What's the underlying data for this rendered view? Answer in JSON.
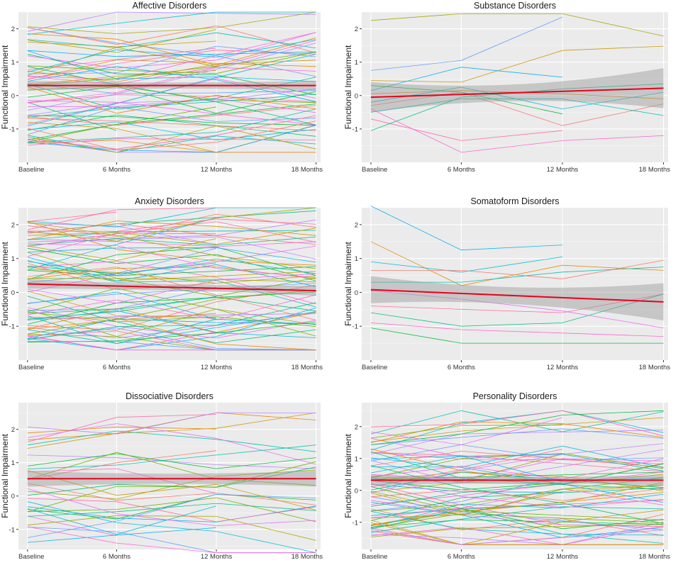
{
  "figure": {
    "palette": [
      "#F8766D",
      "#E58700",
      "#C99800",
      "#A3A500",
      "#6BB100",
      "#00BA38",
      "#00BF7D",
      "#00C0AF",
      "#00BCD8",
      "#00B0F6",
      "#619CFF",
      "#B983FF",
      "#E76BF3",
      "#FD61D1",
      "#FF67A4"
    ],
    "colors": {
      "panel_bg": "#EBEBEB",
      "grid": "#FFFFFF",
      "trend": "#E8001B",
      "ribbon": "#999999"
    }
  },
  "chart_data": [
    {
      "type": "line",
      "title": "Affective Disorders",
      "xlabel": "",
      "ylabel": "Functional Impairment",
      "categories": [
        "Baseline",
        "6 Months",
        "12 Months",
        "18 Months"
      ],
      "yticks": [
        -1,
        0,
        1,
        2
      ],
      "ylim": [
        -2.0,
        2.5
      ],
      "n_lines": 60,
      "seed": 11,
      "trend": {
        "start": 0.3,
        "end": 0.3
      },
      "ribbon": {
        "start": 0.14,
        "mid": 0.09,
        "end": 0.14
      }
    },
    {
      "type": "line",
      "title": "Substance Disorders",
      "xlabel": "",
      "ylabel": "Functional Impairment",
      "categories": [
        "Baseline",
        "6 Months",
        "12 Months",
        "18 Months"
      ],
      "yticks": [
        -1,
        0,
        1,
        2
      ],
      "ylim": [
        -2.0,
        2.5
      ],
      "series": [
        {
          "name": "s1",
          "values": [
            2.25,
            2.45,
            2.45,
            1.78
          ]
        },
        {
          "name": "s2",
          "values": [
            0.75,
            1.05,
            2.35,
            null
          ]
        },
        {
          "name": "s3",
          "values": [
            0.45,
            0.4,
            1.35,
            1.48
          ]
        },
        {
          "name": "s4",
          "values": [
            0.15,
            0.85,
            0.55,
            null
          ]
        },
        {
          "name": "s5",
          "values": [
            0.05,
            0.15,
            0.05,
            -0.1
          ]
        },
        {
          "name": "s6",
          "values": [
            -0.2,
            0.25,
            -0.4,
            0.1
          ]
        },
        {
          "name": "s7",
          "values": [
            -0.3,
            0.1,
            -0.9,
            -0.25
          ]
        },
        {
          "name": "s8",
          "values": [
            -0.5,
            -0.1,
            -0.1,
            -0.6
          ]
        },
        {
          "name": "s9",
          "values": [
            -0.7,
            -1.35,
            -1.05,
            null
          ]
        },
        {
          "name": "s10",
          "values": [
            -1.05,
            -0.05,
            0.2,
            0.35
          ]
        },
        {
          "name": "s11",
          "values": [
            -0.4,
            -1.7,
            -1.35,
            -1.2
          ]
        },
        {
          "name": "s12",
          "values": [
            0.3,
            0.1,
            -0.55,
            null
          ]
        }
      ],
      "trend": {
        "start": -0.05,
        "end": 0.22
      },
      "ribbon": {
        "start": 0.45,
        "mid": 0.25,
        "end": 0.6
      }
    },
    {
      "type": "line",
      "title": "Anxiety Disorders",
      "xlabel": "",
      "ylabel": "Functional Impairment",
      "categories": [
        "Baseline",
        "6 Months",
        "12 Months",
        "18 Months"
      ],
      "yticks": [
        -1,
        0,
        1,
        2
      ],
      "ylim": [
        -2.0,
        2.5
      ],
      "n_lines": 75,
      "seed": 23,
      "trend": {
        "start": 0.25,
        "end": 0.05
      },
      "ribbon": {
        "start": 0.14,
        "mid": 0.09,
        "end": 0.15
      }
    },
    {
      "type": "line",
      "title": "Somatoform Disorders",
      "xlabel": "",
      "ylabel": "Functional Impairment",
      "categories": [
        "Baseline",
        "6 Months",
        "12 Months",
        "18 Months"
      ],
      "yticks": [
        -1,
        0,
        1,
        2
      ],
      "ylim": [
        -2.0,
        2.5
      ],
      "series": [
        {
          "name": "s1",
          "values": [
            2.55,
            1.25,
            1.4,
            null
          ]
        },
        {
          "name": "s2",
          "values": [
            1.5,
            0.2,
            0.8,
            0.65
          ]
        },
        {
          "name": "s3",
          "values": [
            0.9,
            0.6,
            1.05,
            null
          ]
        },
        {
          "name": "s4",
          "values": [
            0.65,
            0.65,
            0.4,
            0.95
          ]
        },
        {
          "name": "s5",
          "values": [
            0.3,
            0.3,
            0.6,
            0.75
          ]
        },
        {
          "name": "s6",
          "values": [
            -0.4,
            -0.5,
            -0.6,
            -0.05
          ]
        },
        {
          "name": "s7",
          "values": [
            -0.6,
            -1.0,
            -0.9,
            -0.05
          ]
        },
        {
          "name": "s8",
          "values": [
            -0.9,
            -1.1,
            -1.2,
            -1.3
          ]
        },
        {
          "name": "s9",
          "values": [
            -1.05,
            -1.5,
            -1.5,
            -1.5
          ]
        },
        {
          "name": "s10",
          "values": [
            0.05,
            -0.2,
            -0.55,
            -1.05
          ]
        }
      ],
      "trend": {
        "start": 0.08,
        "end": -0.28
      },
      "ribbon": {
        "start": 0.4,
        "mid": 0.25,
        "end": 0.55
      }
    },
    {
      "type": "line",
      "title": "Dissociative Disorders",
      "xlabel": "",
      "ylabel": "Functional Impairment",
      "categories": [
        "Baseline",
        "6 Months",
        "12 Months",
        "18 Months"
      ],
      "yticks": [
        -1,
        0,
        1,
        2
      ],
      "ylim": [
        -1.6,
        2.8
      ],
      "n_lines": 32,
      "seed": 37,
      "trend": {
        "start": 0.52,
        "end": 0.52
      },
      "ribbon": {
        "start": 0.24,
        "mid": 0.15,
        "end": 0.24
      }
    },
    {
      "type": "line",
      "title": "Personality Disorders",
      "xlabel": "",
      "ylabel": "Functional Impairment",
      "categories": [
        "Baseline",
        "6 Months",
        "12 Months",
        "18 Months"
      ],
      "yticks": [
        -1,
        0,
        1,
        2
      ],
      "ylim": [
        -1.85,
        2.75
      ],
      "n_lines": 70,
      "seed": 53,
      "trend": {
        "start": 0.32,
        "end": 0.32
      },
      "ribbon": {
        "start": 0.16,
        "mid": 0.1,
        "end": 0.16
      }
    }
  ]
}
